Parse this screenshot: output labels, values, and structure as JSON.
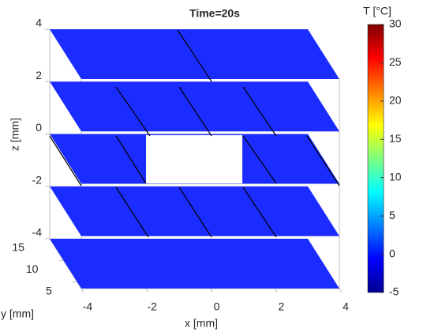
{
  "chart_data": {
    "type": "slice3d",
    "title": "Time=20s",
    "xlabel": "x [mm]",
    "ylabel": "y [mm]",
    "zlabel": "z [mm]",
    "xlim": [
      -4,
      4
    ],
    "xticks": [
      -4,
      -2,
      0,
      2,
      4
    ],
    "ylim": [
      3.5,
      15
    ],
    "yticks": [
      5,
      10,
      15
    ],
    "zlim": [
      -4,
      4
    ],
    "zticks": [
      -4,
      -2,
      0,
      2,
      4
    ],
    "slices": [
      {
        "z": -4,
        "color": "#1a2cff"
      },
      {
        "z": -2,
        "color": "#1a2cff"
      },
      {
        "z": 0,
        "color": "#1a2cff"
      },
      {
        "z": 2,
        "color": "#1a2cff"
      },
      {
        "z": 4,
        "color": "#1a2cff"
      }
    ],
    "colorbar": {
      "label": "T [°C]",
      "lim": [
        -5,
        30
      ],
      "ticks": [
        -5,
        0,
        5,
        10,
        15,
        20,
        25,
        30
      ],
      "colormap": "jet"
    }
  }
}
